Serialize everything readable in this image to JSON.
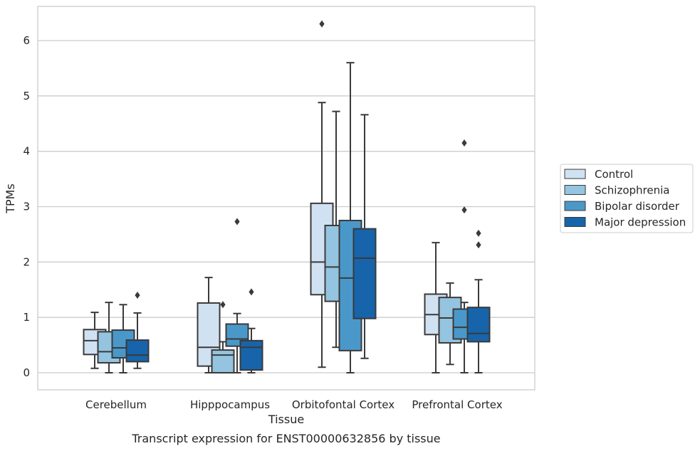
{
  "chart_data": {
    "type": "box",
    "title": "",
    "caption": "Transcript expression for ENST00000632856 by tissue",
    "xlabel": "Tissue",
    "ylabel": "TPMs",
    "ylim": [
      -0.3,
      6.6
    ],
    "yticks": [
      0,
      1,
      2,
      3,
      4,
      5,
      6
    ],
    "grid": "horizontal",
    "legend_position": "right",
    "categories": [
      "Cerebellum",
      "Hipppocampus",
      "Orbitofontal Cortex",
      "Prefrontal Cortex"
    ],
    "series": [
      {
        "name": "Control",
        "color": "#d0e1f2",
        "boxes": [
          {
            "whisker_low": 0.08,
            "q1": 0.33,
            "median": 0.58,
            "q3": 0.78,
            "whisker_high": 1.09,
            "outliers": []
          },
          {
            "whisker_low": 0.0,
            "q1": 0.12,
            "median": 0.46,
            "q3": 1.26,
            "whisker_high": 1.72,
            "outliers": []
          },
          {
            "whisker_low": 0.1,
            "q1": 1.41,
            "median": 2.0,
            "q3": 3.06,
            "whisker_high": 4.88,
            "outliers": [
              6.3
            ]
          },
          {
            "whisker_low": 0.0,
            "q1": 0.69,
            "median": 1.05,
            "q3": 1.42,
            "whisker_high": 2.35,
            "outliers": []
          }
        ]
      },
      {
        "name": "Schizophrenia",
        "color": "#94c4df",
        "boxes": [
          {
            "whisker_low": 0.0,
            "q1": 0.18,
            "median": 0.38,
            "q3": 0.74,
            "whisker_high": 1.27,
            "outliers": []
          },
          {
            "whisker_low": 0.0,
            "q1": 0.0,
            "median": 0.32,
            "q3": 0.41,
            "whisker_high": 0.56,
            "outliers": [
              1.23
            ]
          },
          {
            "whisker_low": 0.46,
            "q1": 1.29,
            "median": 1.91,
            "q3": 2.66,
            "whisker_high": 4.72,
            "outliers": []
          },
          {
            "whisker_low": 0.15,
            "q1": 0.54,
            "median": 0.99,
            "q3": 1.36,
            "whisker_high": 1.62,
            "outliers": []
          }
        ]
      },
      {
        "name": "Bipolar disorder",
        "color": "#4a98c9",
        "boxes": [
          {
            "whisker_low": 0.0,
            "q1": 0.27,
            "median": 0.45,
            "q3": 0.77,
            "whisker_high": 1.23,
            "outliers": []
          },
          {
            "whisker_low": 0.0,
            "q1": 0.48,
            "median": 0.61,
            "q3": 0.88,
            "whisker_high": 1.07,
            "outliers": [
              2.73
            ]
          },
          {
            "whisker_low": 0.0,
            "q1": 0.4,
            "median": 1.71,
            "q3": 2.75,
            "whisker_high": 5.6,
            "outliers": []
          },
          {
            "whisker_low": 0.0,
            "q1": 0.61,
            "median": 0.82,
            "q3": 1.15,
            "whisker_high": 1.27,
            "outliers": [
              2.94,
              4.15
            ]
          }
        ]
      },
      {
        "name": "Major depression",
        "color": "#1764ab",
        "boxes": [
          {
            "whisker_low": 0.08,
            "q1": 0.2,
            "median": 0.32,
            "q3": 0.59,
            "whisker_high": 1.08,
            "outliers": [
              1.4
            ]
          },
          {
            "whisker_low": 0.0,
            "q1": 0.05,
            "median": 0.46,
            "q3": 0.58,
            "whisker_high": 0.8,
            "outliers": [
              1.46
            ]
          },
          {
            "whisker_low": 0.26,
            "q1": 0.98,
            "median": 2.07,
            "q3": 2.6,
            "whisker_high": 4.66,
            "outliers": []
          },
          {
            "whisker_low": 0.0,
            "q1": 0.56,
            "median": 0.71,
            "q3": 1.18,
            "whisker_high": 1.68,
            "outliers": [
              2.31,
              2.52
            ]
          }
        ]
      }
    ]
  }
}
